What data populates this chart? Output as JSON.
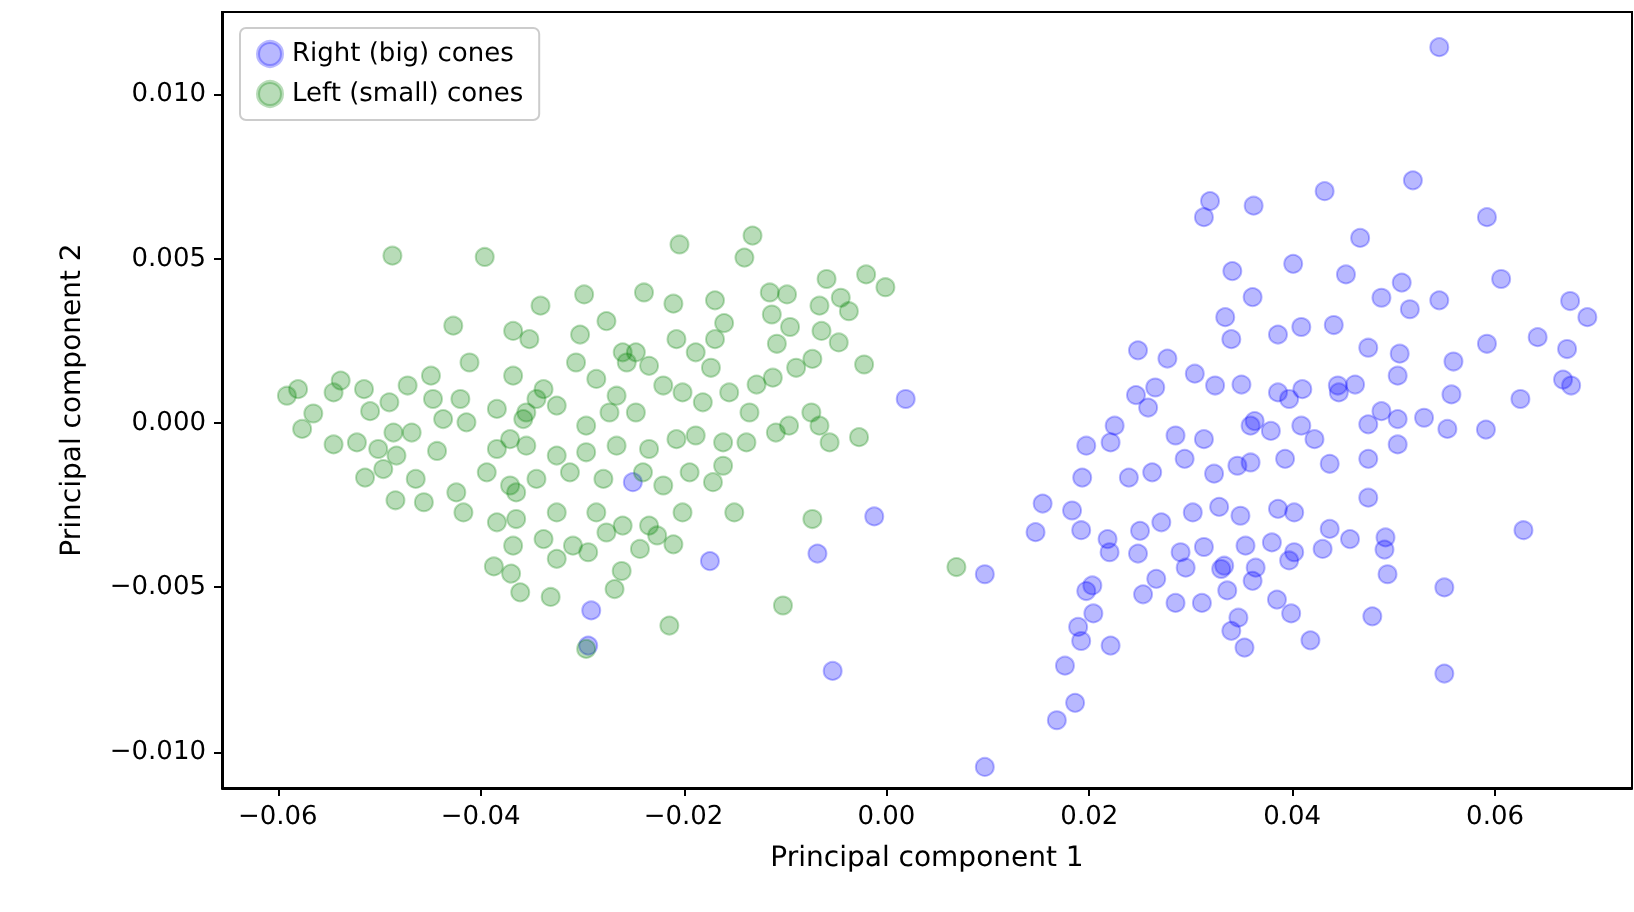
{
  "chart_data": {
    "type": "scatter",
    "xlabel": "Principal component 1",
    "ylabel": "Principal component 2",
    "xlim": [
      -0.0655,
      0.0735
    ],
    "ylim": [
      -0.0111,
      0.0125
    ],
    "xticks": [
      {
        "value": -0.06,
        "label": "−0.06"
      },
      {
        "value": -0.04,
        "label": "−0.04"
      },
      {
        "value": -0.02,
        "label": "−0.02"
      },
      {
        "value": 0,
        "label": "0.00"
      },
      {
        "value": 0.02,
        "label": "0.02"
      },
      {
        "value": 0.04,
        "label": "0.04"
      },
      {
        "value": 0.06,
        "label": "0.06"
      }
    ],
    "yticks": [
      {
        "value": -0.01,
        "label": "−0.010"
      },
      {
        "value": -0.005,
        "label": "−0.005"
      },
      {
        "value": 0,
        "label": "0.000"
      },
      {
        "value": 0.005,
        "label": "0.005"
      },
      {
        "value": 0.01,
        "label": "0.010"
      }
    ],
    "grid": false,
    "legend": "top left",
    "marker": "circle",
    "series": [
      {
        "name": "Right (big) cones",
        "color": "#0000ff",
        "x": [
          0.0545,
          0.0519,
          0.0432,
          0.0362,
          0.0319,
          0.0313,
          0.0592,
          0.0467,
          0.0606,
          0.0674,
          0.0691,
          0.0545,
          0.0341,
          0.0401,
          0.0453,
          0.0508,
          0.0361,
          0.0488,
          0.0516,
          0.0334,
          0.0409,
          0.0441,
          0.0248,
          0.0277,
          0.034,
          0.0386,
          0.0475,
          0.0506,
          0.0559,
          0.0592,
          0.0642,
          0.0671,
          0.0667,
          0.0675,
          0.0625,
          0.0557,
          0.0591,
          0.0553,
          0.053,
          0.0504,
          0.0488,
          0.0504,
          0.0462,
          0.0446,
          0.041,
          0.0386,
          0.035,
          0.0324,
          0.0304,
          0.0265,
          0.0246,
          0.0258,
          0.0225,
          0.0197,
          0.0221,
          0.0285,
          0.0313,
          0.0363,
          0.0379,
          0.0409,
          0.0422,
          0.0475,
          0.0504,
          0.0475,
          0.0437,
          0.0393,
          0.0359,
          0.0323,
          0.0294,
          0.0262,
          0.0239,
          0.0193,
          0.0154,
          0.0183,
          0.0147,
          0.0192,
          0.0218,
          0.025,
          0.0271,
          0.0302,
          0.0328,
          0.0349,
          0.0386,
          0.0402,
          0.0437,
          0.0457,
          0.0475,
          0.0492,
          0.0628,
          0.0248,
          0.029,
          0.0313,
          0.0354,
          0.038,
          0.0402,
          0.043,
          0.0491,
          0.022,
          0.0295,
          0.033,
          0.0364,
          0.0397,
          0.0494,
          0.0203,
          0.0266,
          0.0336,
          0.0361,
          0.055,
          0.0197,
          0.0253,
          0.0285,
          0.0311,
          0.0385,
          0.0399,
          0.0479,
          0.0204,
          0.0347,
          0.0189,
          0.0192,
          0.0221,
          0.034,
          0.0353,
          0.0418,
          0.055,
          0.0176,
          0.0186,
          0.0168,
          0.0097,
          0.0097,
          0.0019,
          -0.0012,
          0.0346,
          0.0445,
          0.0333,
          0.0397,
          0.0359,
          -0.025,
          -0.0174,
          -0.0068,
          -0.0291,
          -0.0294,
          -0.0053
        ],
        "values": [
          0.01143,
          0.00738,
          0.00705,
          0.00661,
          0.00675,
          0.00626,
          0.00626,
          0.00563,
          0.00438,
          0.00371,
          0.00322,
          0.00373,
          0.00462,
          0.00484,
          0.00452,
          0.00427,
          0.00383,
          0.00381,
          0.00346,
          0.00322,
          0.00292,
          0.00298,
          0.00221,
          0.00196,
          0.00255,
          0.00269,
          0.00229,
          0.00211,
          0.00187,
          0.00241,
          0.00261,
          0.00225,
          0.00132,
          0.00114,
          0.00073,
          0.00087,
          -0.0002,
          -0.00018,
          0.00016,
          0.00012,
          0.00036,
          0.00144,
          0.00117,
          0.00093,
          0.00103,
          0.00093,
          0.00117,
          0.00114,
          0.0015,
          0.00108,
          0.00085,
          0.00047,
          -8e-05,
          -0.00069,
          -0.00059,
          -0.00038,
          -0.00049,
          6e-05,
          -0.00024,
          -8e-05,
          -0.00049,
          -4e-05,
          -0.00065,
          -0.00109,
          -0.00124,
          -0.00109,
          -0.0012,
          -0.00154,
          -0.00109,
          -0.0015,
          -0.00166,
          -0.00166,
          -0.00245,
          -0.00266,
          -0.00332,
          -0.00326,
          -0.00353,
          -0.00328,
          -0.00302,
          -0.00272,
          -0.00255,
          -0.00282,
          -0.00261,
          -0.00272,
          -0.00322,
          -0.00353,
          -0.00227,
          -0.00348,
          -0.00326,
          -0.00397,
          -0.00393,
          -0.00377,
          -0.00373,
          -0.00363,
          -0.00393,
          -0.00383,
          -0.00385,
          -0.00393,
          -0.0044,
          -0.00444,
          -0.0044,
          -0.00418,
          -0.0046,
          -0.00494,
          -0.00474,
          -0.00509,
          -0.0048,
          -0.005,
          -0.00511,
          -0.00521,
          -0.00547,
          -0.00547,
          -0.00537,
          -0.00579,
          -0.00588,
          -0.00579,
          -0.00592,
          -0.0062,
          -0.00663,
          -0.00677,
          -0.00632,
          -0.00683,
          -0.00661,
          -0.00762,
          -0.00738,
          -0.00851,
          -0.00904,
          -0.01046,
          -0.0046,
          0.00073,
          -0.00284,
          -0.0013,
          0.00114,
          -0.00434,
          0.00073,
          -8e-05,
          -0.0018,
          -0.0042,
          -0.00397,
          -0.0057,
          -0.00677,
          -0.00754
        ]
      },
      {
        "name": "Left (small) cones",
        "color": "#008000",
        "x": [
          -0.0487,
          -0.0396,
          -0.0204,
          -0.0132,
          -0.014,
          -0.0059,
          -0.0045,
          -0.002,
          -0.0001,
          -0.0115,
          -0.0098,
          -0.0169,
          -0.021,
          -0.0239,
          -0.0298,
          -0.0341,
          -0.0427,
          -0.0113,
          -0.0066,
          -0.0037,
          -0.0095,
          -0.0064,
          -0.0047,
          -0.0108,
          -0.016,
          -0.0169,
          -0.0276,
          -0.0368,
          -0.0352,
          -0.0302,
          -0.026,
          -0.0207,
          -0.0188,
          -0.0411,
          -0.0073,
          -0.0022,
          -0.0089,
          -0.0112,
          -0.0128,
          -0.0173,
          -0.0449,
          -0.0472,
          -0.0538,
          -0.0591,
          -0.058,
          -0.0545,
          -0.0515,
          -0.0565,
          -0.0576,
          -0.0545,
          -0.0522,
          -0.0509,
          -0.049,
          -0.0486,
          -0.0468,
          -0.0501,
          -0.0483,
          -0.0514,
          -0.0496,
          -0.0484,
          -0.0464,
          -0.0456,
          -0.0443,
          -0.0437,
          -0.0447,
          -0.042,
          -0.0414,
          -0.0384,
          -0.0368,
          -0.0338,
          -0.0355,
          -0.0325,
          -0.0306,
          -0.0286,
          -0.0266,
          -0.0256,
          -0.0234,
          -0.022,
          -0.0201,
          -0.0247,
          -0.0273,
          -0.0296,
          -0.0181,
          -0.0155,
          -0.0135,
          -0.0109,
          -0.0096,
          -0.0074,
          -0.0056,
          -0.0027,
          -0.0066,
          -0.0138,
          -0.0161,
          -0.0188,
          -0.0207,
          -0.0234,
          -0.0266,
          -0.0296,
          -0.0325,
          -0.0355,
          -0.0384,
          -0.0394,
          -0.0371,
          -0.0345,
          -0.0312,
          -0.0279,
          -0.024,
          -0.022,
          -0.0194,
          -0.0171,
          -0.0161,
          -0.015,
          -0.0201,
          -0.0234,
          -0.026,
          -0.0286,
          -0.0325,
          -0.0365,
          -0.0384,
          -0.0417,
          -0.0424,
          -0.0368,
          -0.0338,
          -0.0325,
          -0.0309,
          -0.0294,
          -0.0276,
          -0.0243,
          -0.0226,
          -0.021,
          -0.0387,
          -0.037,
          -0.0361,
          -0.0331,
          -0.0268,
          -0.0261,
          -0.0073,
          -0.0102,
          -0.0214,
          -0.0296,
          0.0069,
          -0.0358,
          -0.0345,
          -0.0371,
          -0.0247,
          -0.0365
        ],
        "values": [
          0.00509,
          0.00505,
          0.00543,
          0.0057,
          0.00503,
          0.00438,
          0.00381,
          0.00452,
          0.00413,
          0.00397,
          0.00391,
          0.00373,
          0.00363,
          0.00397,
          0.00391,
          0.00357,
          0.00296,
          0.0033,
          0.00357,
          0.0034,
          0.00292,
          0.0028,
          0.00245,
          0.00241,
          0.00304,
          0.00255,
          0.0031,
          0.0028,
          0.00255,
          0.00269,
          0.00215,
          0.00255,
          0.00215,
          0.00184,
          0.00195,
          0.00178,
          0.00168,
          0.00138,
          0.00117,
          0.00168,
          0.00144,
          0.00114,
          0.00129,
          0.00083,
          0.00103,
          0.00093,
          0.00103,
          0.00029,
          -0.00018,
          -0.00065,
          -0.00059,
          0.00036,
          0.00063,
          -0.00029,
          -0.00029,
          -0.00079,
          -0.00099,
          -0.00166,
          -0.0014,
          -0.00235,
          -0.0017,
          -0.00241,
          -0.00085,
          0.00012,
          0.00073,
          0.00073,
          2e-05,
          0.00043,
          0.00144,
          0.00103,
          0.00032,
          0.00053,
          0.00184,
          0.00134,
          0.00083,
          0.00184,
          0.00174,
          0.00114,
          0.00093,
          0.00032,
          0.00032,
          -8e-05,
          0.00063,
          0.00093,
          0.00032,
          -0.00029,
          -8e-05,
          0.00032,
          -0.00059,
          -0.00043,
          -8e-05,
          -0.00059,
          -0.00059,
          -0.00038,
          -0.00049,
          -0.00079,
          -0.00069,
          -0.00089,
          -0.00099,
          -0.00069,
          -0.00079,
          -0.0015,
          -0.0019,
          -0.0017,
          -0.0015,
          -0.0017,
          -0.0015,
          -0.0019,
          -0.0015,
          -0.0018,
          -0.0013,
          -0.00272,
          -0.00272,
          -0.00312,
          -0.00312,
          -0.00272,
          -0.00272,
          -0.00292,
          -0.00302,
          -0.00272,
          -0.00211,
          -0.00373,
          -0.00353,
          -0.00413,
          -0.00373,
          -0.00393,
          -0.00333,
          -0.00383,
          -0.00342,
          -0.00369,
          -0.00436,
          -0.00458,
          -0.00515,
          -0.00529,
          -0.00505,
          -0.0045,
          -0.00292,
          -0.00555,
          -0.00616,
          -0.00687,
          -0.00438,
          0.00012,
          0.00073,
          -0.00049,
          0.00215,
          -0.00211
        ]
      }
    ]
  }
}
